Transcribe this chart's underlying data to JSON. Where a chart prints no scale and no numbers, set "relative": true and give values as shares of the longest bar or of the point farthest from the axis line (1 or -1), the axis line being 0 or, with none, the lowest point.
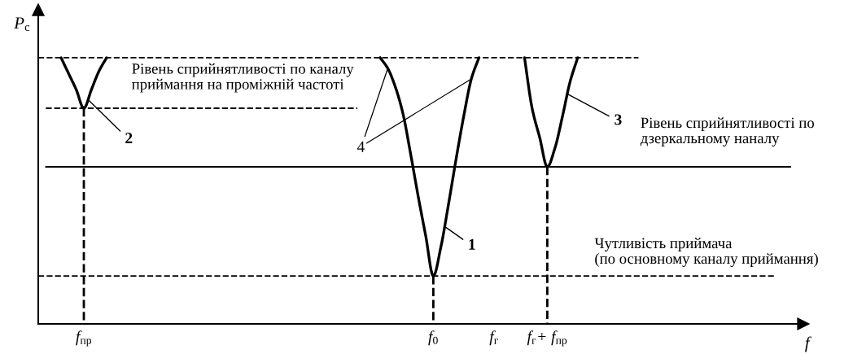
{
  "chart_data": {
    "type": "line",
    "relative": true,
    "tick_labels": "x",
    "xlabel": "f",
    "ylabel": "P$_{с}$",
    "categories": [
      null,
      null,
      null,
      null,
      null,
      null,
      "f$_{пр}$",
      null,
      null,
      null,
      null,
      null,
      null,
      null,
      null,
      null,
      null,
      null,
      null,
      null,
      null,
      null,
      null,
      null,
      null,
      null,
      null,
      null,
      null,
      null,
      null,
      null,
      null,
      null,
      null,
      null,
      null,
      null,
      null,
      null,
      null,
      null,
      null,
      null,
      null,
      null,
      null,
      null,
      null,
      null,
      null,
      null,
      "f$_{0}$",
      null,
      null,
      null,
      null,
      null,
      null,
      null,
      "f$_{г}$",
      null,
      null,
      null,
      null,
      null,
      null,
      "f$_{г}$+ f$_{пр}$",
      null,
      null,
      null,
      null,
      null,
      null,
      null,
      null,
      null,
      null,
      null,
      null,
      null,
      null,
      null,
      null,
      null,
      null,
      null,
      null,
      null,
      null,
      null,
      null,
      null,
      null,
      null,
      null,
      null,
      null,
      null,
      null,
      null
    ],
    "series": [
      {
        "name": "1",
        "color": "#000000",
        "values": [
          null,
          null,
          null,
          null,
          null,
          null,
          null,
          null,
          null,
          null,
          null,
          null,
          null,
          null,
          null,
          null,
          null,
          null,
          null,
          null,
          null,
          null,
          null,
          null,
          null,
          null,
          null,
          null,
          null,
          null,
          null,
          null,
          null,
          null,
          null,
          null,
          null,
          null,
          null,
          null,
          null,
          null,
          null,
          null,
          null,
          1,
          0.96,
          0.89,
          0.79,
          0.64,
          0.48,
          0.33,
          0.18,
          0.29,
          0.45,
          0.62,
          0.78,
          0.92,
          1,
          null,
          null,
          null,
          null,
          null,
          null,
          null,
          null,
          null,
          null,
          null,
          null,
          null,
          null,
          null,
          null,
          null,
          null,
          null,
          null,
          null,
          null,
          null,
          null,
          null,
          null,
          null,
          null,
          null,
          null,
          null,
          null,
          null,
          null,
          null,
          null,
          null,
          null,
          null,
          null,
          null,
          null
        ]
      },
      {
        "name": "2",
        "color": "#000000",
        "values": [
          null,
          null,
          null,
          1,
          0.94,
          0.88,
          0.81,
          0.88,
          0.95,
          1,
          null,
          null,
          null,
          null,
          null,
          null,
          null,
          null,
          null,
          null,
          null,
          null,
          null,
          null,
          null,
          null,
          null,
          null,
          null,
          null,
          null,
          null,
          null,
          null,
          null,
          null,
          null,
          null,
          null,
          null,
          null,
          null,
          null,
          null,
          null,
          null,
          null,
          null,
          null,
          null,
          null,
          null,
          null,
          null,
          null,
          null,
          null,
          null,
          null,
          null,
          null,
          null,
          null,
          null,
          null,
          null,
          null,
          null,
          null,
          null,
          null,
          null,
          null,
          null,
          null,
          null,
          null,
          null,
          null,
          null,
          null,
          null,
          null,
          null,
          null,
          null,
          null,
          null,
          null,
          null,
          null,
          null,
          null,
          null,
          null,
          null,
          null,
          null,
          null,
          null,
          null
        ]
      },
      {
        "name": "3",
        "color": "#000000",
        "values": [
          null,
          null,
          null,
          null,
          null,
          null,
          null,
          null,
          null,
          null,
          null,
          null,
          null,
          null,
          null,
          null,
          null,
          null,
          null,
          null,
          null,
          null,
          null,
          null,
          null,
          null,
          null,
          null,
          null,
          null,
          null,
          null,
          null,
          null,
          null,
          null,
          null,
          null,
          null,
          null,
          null,
          null,
          null,
          null,
          null,
          null,
          null,
          null,
          null,
          null,
          null,
          null,
          null,
          null,
          null,
          null,
          null,
          null,
          null,
          null,
          null,
          null,
          null,
          null,
          1,
          0.81,
          0.7,
          0.59,
          0.66,
          0.78,
          0.91,
          1,
          null,
          null,
          null,
          null,
          null,
          null,
          null,
          null,
          null,
          null,
          null,
          null,
          null,
          null,
          null,
          null,
          null,
          null,
          null,
          null,
          null,
          null,
          null,
          null,
          null,
          null,
          null,
          null,
          null
        ]
      },
      {
        "color": "#000000",
        "line_style": "dashed",
        "values": [
          1,
          1,
          1,
          1,
          1,
          1,
          1,
          1,
          1,
          1,
          1,
          1,
          1,
          1,
          1,
          1,
          1,
          1,
          1,
          1,
          1,
          1,
          1,
          1,
          1,
          1,
          1,
          1,
          1,
          1,
          1,
          1,
          1,
          1,
          1,
          1,
          1,
          1,
          1,
          1,
          1,
          1,
          1,
          1,
          1,
          1,
          1,
          1,
          1,
          1,
          1,
          1,
          1,
          1,
          1,
          1,
          1,
          1,
          1,
          1,
          1,
          1,
          1,
          1,
          1,
          1,
          1,
          1,
          1,
          1,
          1,
          1,
          1,
          1,
          1,
          1,
          1,
          1,
          1,
          1,
          null,
          null,
          null,
          null,
          null,
          null,
          null,
          null,
          null,
          null,
          null,
          null,
          null,
          null,
          null,
          null,
          null,
          null,
          null,
          null,
          null
        ]
      },
      {
        "name": "Рівень сприйнятливості по каналу\nприймання на проміжній частоті",
        "color": "#000000",
        "line_style": "dashed",
        "values": [
          null,
          0.81,
          0.81,
          0.81,
          0.81,
          0.81,
          0.81,
          0.81,
          0.81,
          0.81,
          0.81,
          0.81,
          0.81,
          0.81,
          0.81,
          0.81,
          0.81,
          0.81,
          0.81,
          0.81,
          0.81,
          0.81,
          0.81,
          0.81,
          0.81,
          0.81,
          0.81,
          0.81,
          0.81,
          0.81,
          0.81,
          0.81,
          0.81,
          0.81,
          0.81,
          0.81,
          0.81,
          0.81,
          0.81,
          0.81,
          0.81,
          0.81,
          0.81,
          null,
          null,
          null,
          null,
          null,
          null,
          null,
          null,
          null,
          null,
          null,
          null,
          null,
          null,
          null,
          null,
          null,
          null,
          null,
          null,
          null,
          null,
          null,
          null,
          null,
          null,
          null,
          null,
          null,
          null,
          null,
          null,
          null,
          null,
          null,
          null,
          null,
          null,
          null,
          null,
          null,
          null,
          null,
          null,
          null,
          null,
          null,
          null,
          null,
          null,
          null,
          null,
          null,
          null,
          null,
          null,
          null,
          null
        ]
      },
      {
        "name": "Рівень сприйнятливості по\nдзеркальному наналу",
        "color": "#000000",
        "values": [
          null,
          0.59,
          0.59,
          0.59,
          0.59,
          0.59,
          0.59,
          0.59,
          0.59,
          0.59,
          0.59,
          0.59,
          0.59,
          0.59,
          0.59,
          0.59,
          0.59,
          0.59,
          0.59,
          0.59,
          0.59,
          0.59,
          0.59,
          0.59,
          0.59,
          0.59,
          0.59,
          0.59,
          0.59,
          0.59,
          0.59,
          0.59,
          0.59,
          0.59,
          0.59,
          0.59,
          0.59,
          0.59,
          0.59,
          0.59,
          0.59,
          0.59,
          0.59,
          0.59,
          0.59,
          0.59,
          0.59,
          0.59,
          0.59,
          0.59,
          0.59,
          0.59,
          0.59,
          0.59,
          0.59,
          0.59,
          0.59,
          0.59,
          0.59,
          0.59,
          0.59,
          0.59,
          0.59,
          0.59,
          0.59,
          0.59,
          0.59,
          0.59,
          0.59,
          0.59,
          0.59,
          0.59,
          0.59,
          0.59,
          0.59,
          0.59,
          0.59,
          0.59,
          0.59,
          0.59,
          0.59,
          0.59,
          0.59,
          0.59,
          0.59,
          0.59,
          0.59,
          0.59,
          0.59,
          0.59,
          0.59,
          0.59,
          0.59,
          0.59,
          0.59,
          0.59,
          0.59,
          0.59,
          0.59,
          0.59,
          null
        ]
      },
      {
        "name": "Чутливість приймача\n(по основному каналу приймання)",
        "color": "#000000",
        "line_style": "dashed",
        "values": [
          0.18,
          0.18,
          0.18,
          0.18,
          0.18,
          0.18,
          0.18,
          0.18,
          0.18,
          0.18,
          0.18,
          0.18,
          0.18,
          0.18,
          0.18,
          0.18,
          0.18,
          0.18,
          0.18,
          0.18,
          0.18,
          0.18,
          0.18,
          0.18,
          0.18,
          0.18,
          0.18,
          0.18,
          0.18,
          0.18,
          0.18,
          0.18,
          0.18,
          0.18,
          0.18,
          0.18,
          0.18,
          0.18,
          0.18,
          0.18,
          0.18,
          0.18,
          0.18,
          0.18,
          0.18,
          0.18,
          0.18,
          0.18,
          0.18,
          0.18,
          0.18,
          0.18,
          0.18,
          0.18,
          0.18,
          0.18,
          0.18,
          0.18,
          0.18,
          0.18,
          0.18,
          0.18,
          0.18,
          0.18,
          0.18,
          0.18,
          0.18,
          0.18,
          0.18,
          0.18,
          0.18,
          0.18,
          0.18,
          0.18,
          0.18,
          0.18,
          0.18,
          0.18,
          0.18,
          0.18,
          0.18,
          0.18,
          0.18,
          0.18,
          0.18,
          0.18,
          0.18,
          0.18,
          0.18,
          0.18,
          0.18,
          0.18,
          0.18,
          0.18,
          0.18,
          0.18,
          0.18,
          0.18,
          null,
          null,
          null
        ]
      },
      {
        "color": "#000000",
        "line_style": "dashed",
        "x": [
          "f$_{пр}$",
          "f$_{пр}$"
        ],
        "values": [
          0.81,
          0
        ]
      },
      {
        "color": "#000000",
        "line_style": "dashed",
        "x": [
          "f$_{0}$",
          "f$_{0}$"
        ],
        "values": [
          0.18,
          0
        ]
      },
      {
        "color": "#000000",
        "line_style": "dashed",
        "x": [
          "f$_{г}$+ f$_{пр}$",
          "f$_{г}$+ f$_{пр}$"
        ],
        "values": [
          0.59,
          0
        ]
      }
    ],
    "annotations": [
      "4"
    ]
  }
}
